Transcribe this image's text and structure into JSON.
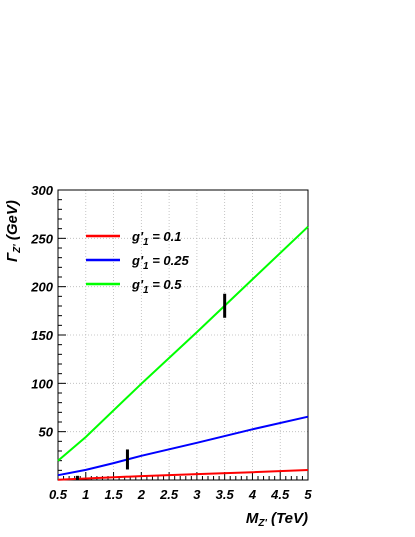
{
  "chart_data": {
    "type": "line",
    "title": "",
    "xlabel": {
      "base": "M",
      "sub": "Z'",
      "rest": " (TeV)"
    },
    "ylabel": {
      "base": "Γ",
      "sub": "Z'",
      "rest": " (GeV)"
    },
    "xlim": [
      0.5,
      5
    ],
    "ylim": [
      0,
      300
    ],
    "grid": true,
    "legend_position": "top-left",
    "xticks": [
      "0.5",
      "1",
      "1.5",
      "2",
      "2.5",
      "3",
      "3.5",
      "4",
      "4.5",
      "5"
    ],
    "yticks": [
      "50",
      "100",
      "150",
      "200",
      "250",
      "300"
    ],
    "series": [
      {
        "name": "g'1 = 0.1",
        "legend": {
          "base": "g'",
          "sub": "1",
          "rest": " = 0.1"
        },
        "color": "#ff0000",
        "x": [
          0.5,
          1,
          2,
          3,
          4,
          5
        ],
        "y": [
          0.3,
          1.6,
          4.0,
          6.1,
          8.1,
          10.3
        ],
        "marker_x": 0.85,
        "marker_half_height": 3
      },
      {
        "name": "g'1 = 0.25",
        "legend": {
          "base": "g'",
          "sub": "1",
          "rest": " = 0.25"
        },
        "color": "#0000ff",
        "x": [
          0.5,
          1,
          1.5,
          2,
          3,
          4,
          5
        ],
        "y": [
          5,
          10.5,
          17.5,
          25,
          38.5,
          52.5,
          65.5
        ],
        "marker_x": 1.75,
        "marker_half_height": 10
      },
      {
        "name": "g'1 = 0.5",
        "legend": {
          "base": "g'",
          "sub": "1",
          "rest": " = 0.5"
        },
        "color": "#00ff00",
        "x": [
          0.5,
          1,
          2,
          3,
          4,
          5
        ],
        "y": [
          20,
          44.5,
          99.5,
          153,
          207.5,
          262
        ],
        "marker_x": 3.5,
        "marker_half_height": 12
      }
    ]
  }
}
